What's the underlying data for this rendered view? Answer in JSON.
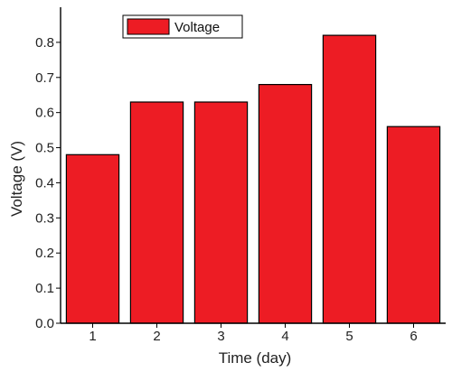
{
  "chart_data": {
    "type": "bar",
    "categories": [
      "1",
      "2",
      "3",
      "4",
      "5",
      "6"
    ],
    "series": [
      {
        "name": "Voltage",
        "values": [
          0.48,
          0.63,
          0.63,
          0.68,
          0.82,
          0.56
        ],
        "color": "#ed1c24"
      }
    ],
    "xlabel": "Time (day)",
    "ylabel": "Voltage (V)",
    "ylim": [
      0.0,
      0.9
    ],
    "yticks": [
      "0.0",
      "0.1",
      "0.2",
      "0.3",
      "0.4",
      "0.5",
      "0.6",
      "0.7",
      "0.8"
    ],
    "grid": false,
    "legend": {
      "position": "top-left",
      "entries": [
        "Voltage"
      ]
    }
  }
}
